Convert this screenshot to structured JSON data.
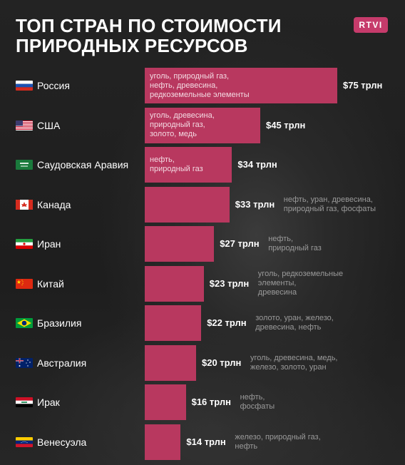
{
  "title": "ТОП СТРАН ПО СТОИМОСТИ ПРИРОДНЫХ РЕСУРСОВ",
  "logo": "RTVI",
  "colors": {
    "bar": "#b8385f",
    "logo": "#c63b6b"
  },
  "chart_data": {
    "type": "bar",
    "orientation": "horizontal",
    "title": "ТОП СТРАН ПО СТОИМОСТИ ПРИРОДНЫХ РЕСУРСОВ",
    "xlim": [
      0,
      75
    ],
    "categories": [
      "Россия",
      "США",
      "Саудовская Аравия",
      "Канада",
      "Иран",
      "Китай",
      "Бразилия",
      "Австралия",
      "Ирак",
      "Венесуэла"
    ],
    "values": [
      75,
      45,
      34,
      33,
      27,
      23,
      22,
      20,
      16,
      14
    ],
    "value_labels": [
      "$75 трлн",
      "$45 трлн",
      "$34 трлн",
      "$33 трлн",
      "$27 трлн",
      "$23 трлн",
      "$22 трлн",
      "$20 трлн",
      "$16 трлн",
      "$14 трлн"
    ],
    "resources": [
      "уголь, природный газ,\nнефть, древесина,\nредкоземельные элементы",
      "уголь, древесина,\nприродный газ,\nзолото, медь",
      "нефть,\nприродный газ",
      "нефть, уран, древесина,\nприродный газ, фосфаты",
      "нефть,\nприродный газ",
      "уголь, редкоземельные\nэлементы,\nдревесина",
      "золото, уран, железо,\nдревесина, нефть",
      "уголь, древесина, медь,\nжелезо, золото, уран",
      "нефть,\nфосфаты",
      "железо, природный газ,\nнефть"
    ],
    "flags": [
      "russia-flag-icon",
      "usa-flag-icon",
      "saudi-flag-icon",
      "canada-flag-icon",
      "iran-flag-icon",
      "china-flag-icon",
      "brazil-flag-icon",
      "australia-flag-icon",
      "iraq-flag-icon",
      "venezuela-flag-icon"
    ],
    "resources_inside_bar": [
      true,
      true,
      true,
      false,
      false,
      false,
      false,
      false,
      false,
      false
    ]
  }
}
